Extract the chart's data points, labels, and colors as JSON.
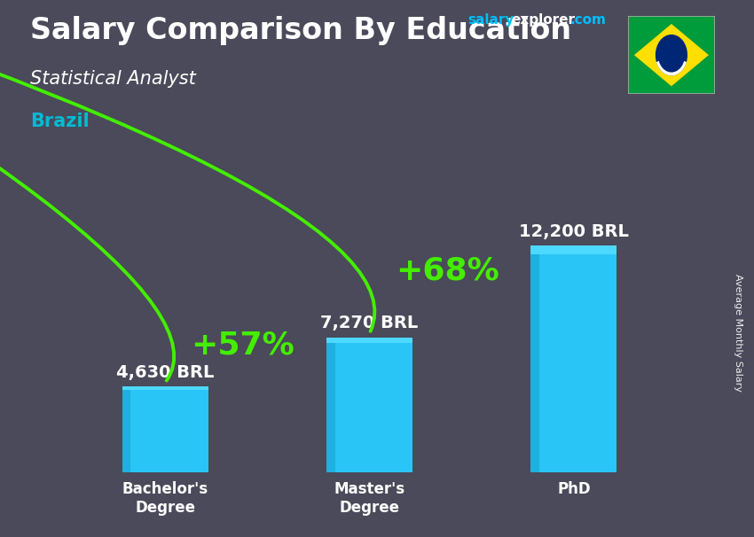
{
  "title_main": "Salary Comparison By Education",
  "subtitle": "Statistical Analyst",
  "country": "Brazil",
  "watermark_salary": "salary",
  "watermark_explorer": "explorer",
  "watermark_com": ".com",
  "ylabel": "Average Monthly Salary",
  "categories": [
    "Bachelor's\nDegree",
    "Master's\nDegree",
    "PhD"
  ],
  "values": [
    4630,
    7270,
    12200
  ],
  "labels": [
    "4,630 BRL",
    "7,270 BRL",
    "12,200 BRL"
  ],
  "bar_color": "#29c5f6",
  "bar_color_light": "#4dd9ff",
  "bar_color_dark": "#1aa8d4",
  "pct_labels": [
    "+57%",
    "+68%"
  ],
  "pct_color": "#44ee00",
  "bg_color": "#4a4a5a",
  "text_color_white": "#ffffff",
  "text_color_cyan": "#00bcd4",
  "watermark_color_salary": "#00bfff",
  "watermark_color_explorer": "#ffffff",
  "watermark_color_com": "#00bfff",
  "arrow_color": "#44ee00",
  "title_fontsize": 24,
  "subtitle_fontsize": 15,
  "country_fontsize": 15,
  "label_fontsize": 14,
  "pct_fontsize": 26,
  "bar_width": 0.42,
  "ylim": [
    0,
    15000
  ],
  "brazil_flag": {
    "green": "#009c3b",
    "yellow": "#ffdf00",
    "blue": "#002776",
    "white": "#ffffff"
  }
}
